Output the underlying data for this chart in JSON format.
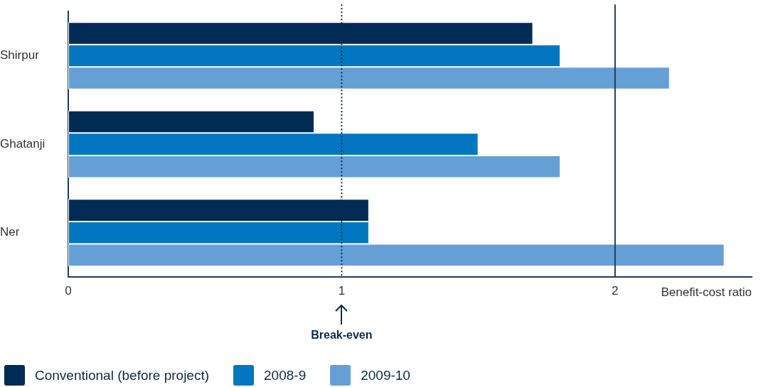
{
  "chart_data": {
    "type": "bar",
    "orientation": "horizontal",
    "categories": [
      "Shirpur",
      "Ghatanji",
      "Ner"
    ],
    "series": [
      {
        "name": "Conventional (before project)",
        "color": "#002b55",
        "values": [
          1.7,
          0.9,
          1.1
        ]
      },
      {
        "name": "2008-9",
        "color": "#0077c0",
        "values": [
          1.8,
          1.5,
          1.1
        ]
      },
      {
        "name": "2009-10",
        "color": "#64a0d6",
        "values": [
          2.2,
          1.8,
          2.4
        ]
      }
    ],
    "xlabel": "Benefit-cost ratio",
    "xlim": [
      0,
      2.5
    ],
    "xticks": [
      0,
      1,
      2
    ],
    "ref_lines": [
      {
        "axis": "x",
        "value": 1,
        "label": "Break-even",
        "line_style": "dotted",
        "color": "#0a2a4a"
      },
      {
        "axis": "x",
        "value": 2,
        "color": "#1f3a5a"
      }
    ],
    "grid": false,
    "legend": "bottom left"
  }
}
